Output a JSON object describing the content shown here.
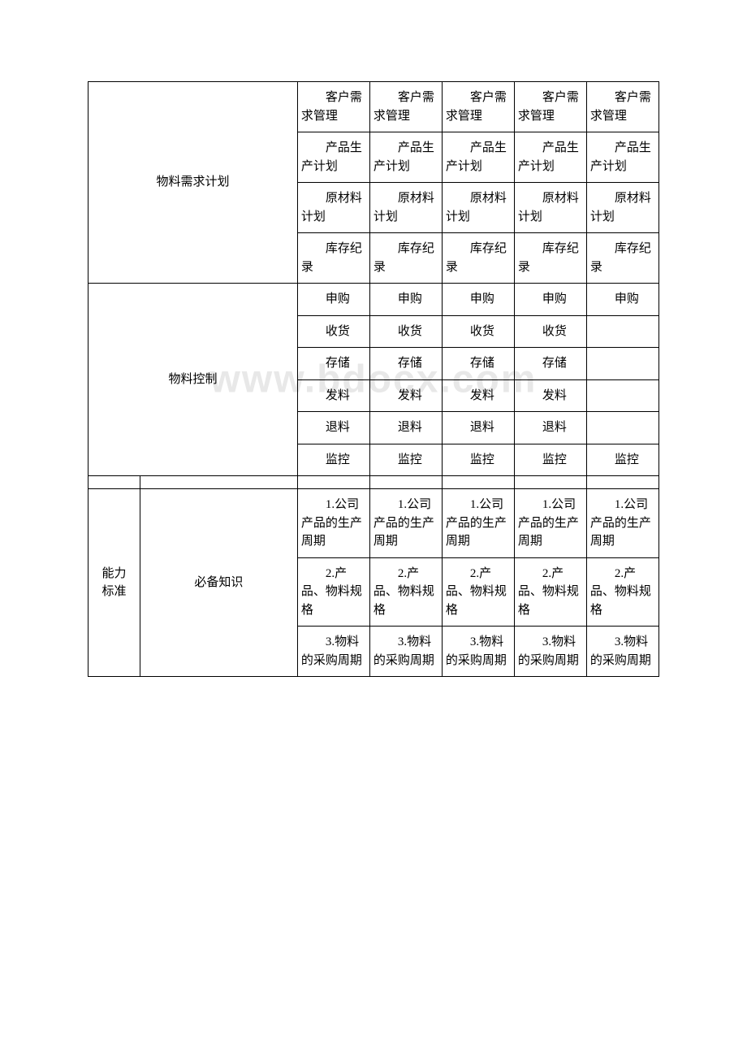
{
  "watermark": "www.bdocx.com",
  "section1": {
    "label": "物料需求计划",
    "rows": [
      [
        "客户需求管理",
        "客户需求管理",
        "客户需求管理",
        "客户需求管理",
        "客户需求管理"
      ],
      [
        "产品生产计划",
        "产品生产计划",
        "产品生产计划",
        "产品生产计划",
        "产品生产计划"
      ],
      [
        "原材料计划",
        "原材料计划",
        "原材料计划",
        "原材料计划",
        "原材料计划"
      ],
      [
        "库存纪录",
        "库存纪录",
        "库存纪录",
        "库存纪录",
        "库存纪录"
      ]
    ]
  },
  "section2": {
    "label": "物料控制",
    "rows": [
      [
        "申购",
        "申购",
        "申购",
        "申购",
        "申购"
      ],
      [
        "收货",
        "收货",
        "收货",
        "收货",
        ""
      ],
      [
        "存储",
        "存储",
        "存储",
        "存储",
        ""
      ],
      [
        "发料",
        "发料",
        "发料",
        "发料",
        ""
      ],
      [
        "退料",
        "退料",
        "退料",
        "退料",
        ""
      ],
      [
        "监控",
        "监控",
        "监控",
        "监控",
        "监控"
      ]
    ]
  },
  "section3": {
    "label1": "能力标准",
    "label2": "必备知识",
    "rows": [
      [
        "1.公司产品的生产周期",
        "1.公司产品的生产周期",
        "1.公司产品的生产周期",
        "1.公司产品的生产周期",
        "1.公司产品的生产周期"
      ],
      [
        "2.产品、物料规格",
        "2.产品、物料规格",
        "2.产品、物料规格",
        "2.产品、物料规格",
        "2.产品、物料规格"
      ],
      [
        "3.物料的采购周期",
        "3.物料的采购周期",
        "3.物料的采购周期",
        "3.物料的采购周期",
        "3.物料的采购周期"
      ]
    ]
  }
}
